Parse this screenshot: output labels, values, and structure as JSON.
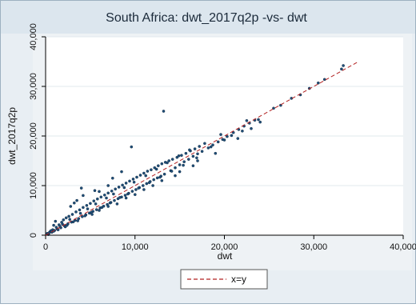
{
  "chart_data": {
    "type": "scatter",
    "title": "South Africa: dwt_2017q2p -vs- dwt",
    "xlabel": "dwt",
    "ylabel": "dwt_2017q2p",
    "xlim": [
      0,
      40000
    ],
    "ylim": [
      0,
      40000
    ],
    "x_ticks": [
      0,
      10000,
      20000,
      30000,
      40000
    ],
    "x_tick_labels": [
      "0",
      "10,000",
      "20,000",
      "30,000",
      "40,000"
    ],
    "y_ticks": [
      0,
      10000,
      20000,
      30000,
      40000
    ],
    "y_tick_labels": [
      "0",
      "10,000",
      "20,000",
      "30,000",
      "40,000"
    ],
    "grid": true,
    "legend_position": "bottom",
    "series": [
      {
        "name": "",
        "kind": "points",
        "color": "#1f4f7a",
        "points": [
          [
            1000,
            950
          ],
          [
            1300,
            1250
          ],
          [
            1700,
            1500
          ],
          [
            2100,
            1900
          ],
          [
            2500,
            2300
          ],
          [
            2900,
            2650
          ],
          [
            3300,
            3000
          ],
          [
            3700,
            3350
          ],
          [
            4100,
            3750
          ],
          [
            4500,
            4100
          ],
          [
            4900,
            4450
          ],
          [
            5300,
            4800
          ],
          [
            5700,
            5150
          ],
          [
            6100,
            5500
          ],
          [
            6500,
            5850
          ],
          [
            6900,
            6200
          ],
          [
            7300,
            6600
          ],
          [
            7700,
            7000
          ],
          [
            8100,
            7350
          ],
          [
            8500,
            7700
          ],
          [
            8900,
            8050
          ],
          [
            9300,
            8450
          ],
          [
            9700,
            8850
          ],
          [
            10100,
            9200
          ],
          [
            10500,
            9600
          ],
          [
            10900,
            10000
          ],
          [
            11300,
            10400
          ],
          [
            11700,
            10800
          ],
          [
            12100,
            11200
          ],
          [
            12500,
            11550
          ],
          [
            12900,
            11900
          ],
          [
            13300,
            12300
          ],
          [
            14000,
            13000
          ],
          [
            14500,
            13600
          ],
          [
            15000,
            14200
          ],
          [
            15500,
            14800
          ],
          [
            16000,
            15300
          ],
          [
            16500,
            15900
          ],
          [
            17000,
            16400
          ],
          [
            17500,
            16900
          ],
          [
            18200,
            17600
          ],
          [
            18700,
            18200
          ],
          [
            19300,
            18800
          ],
          [
            19800,
            19300
          ],
          [
            20300,
            19900
          ],
          [
            21000,
            20700
          ],
          [
            21600,
            21300
          ],
          [
            22200,
            22000
          ],
          [
            22800,
            22600
          ],
          [
            23400,
            23200
          ],
          [
            25500,
            25600
          ],
          [
            26300,
            26200
          ],
          [
            27500,
            27600
          ],
          [
            28500,
            28300
          ],
          [
            29500,
            29600
          ],
          [
            30500,
            30700
          ],
          [
            31200,
            31400
          ],
          [
            33100,
            33500
          ],
          [
            33300,
            34200
          ],
          [
            200,
            350
          ],
          [
            350,
            300
          ],
          [
            500,
            700
          ],
          [
            700,
            600
          ],
          [
            800,
            1100
          ],
          [
            1200,
            1600
          ],
          [
            1500,
            2100
          ],
          [
            1800,
            2600
          ],
          [
            2000,
            3100
          ],
          [
            2300,
            3500
          ],
          [
            2600,
            3800
          ],
          [
            3000,
            4200
          ],
          [
            3400,
            4700
          ],
          [
            3800,
            5100
          ],
          [
            4200,
            5600
          ],
          [
            4600,
            6000
          ],
          [
            5000,
            6400
          ],
          [
            5400,
            6900
          ],
          [
            5800,
            7300
          ],
          [
            6200,
            7700
          ],
          [
            6600,
            8100
          ],
          [
            7000,
            8500
          ],
          [
            7400,
            8900
          ],
          [
            7800,
            9300
          ],
          [
            8200,
            9700
          ],
          [
            8600,
            10100
          ],
          [
            9000,
            10500
          ],
          [
            9400,
            10900
          ],
          [
            9800,
            11300
          ],
          [
            10200,
            11700
          ],
          [
            10600,
            12100
          ],
          [
            11000,
            12500
          ],
          [
            11400,
            12900
          ],
          [
            11800,
            13200
          ],
          [
            12200,
            13600
          ],
          [
            12600,
            14000
          ],
          [
            13000,
            14400
          ],
          [
            13400,
            14700
          ],
          [
            13800,
            15000
          ],
          [
            14200,
            15300
          ],
          [
            14700,
            15700
          ],
          [
            15200,
            16100
          ],
          [
            15700,
            16500
          ],
          [
            16200,
            17000
          ],
          [
            16700,
            17400
          ],
          [
            17200,
            17900
          ],
          [
            3500,
            7000
          ],
          [
            4200,
            8000
          ],
          [
            5500,
            9000
          ],
          [
            7000,
            10000
          ],
          [
            4000,
            9500
          ],
          [
            9600,
            17800
          ],
          [
            13200,
            25000
          ],
          [
            8500,
            12800
          ],
          [
            6000,
            8800
          ],
          [
            7500,
            11500
          ],
          [
            2800,
            5800
          ],
          [
            3200,
            6500
          ],
          [
            1100,
            2800
          ],
          [
            900,
            2000
          ],
          [
            6000,
            5000
          ],
          [
            8000,
            6300
          ],
          [
            10000,
            8200
          ],
          [
            12000,
            10000
          ],
          [
            14500,
            12000
          ],
          [
            16500,
            14000
          ],
          [
            19000,
            16500
          ],
          [
            21500,
            19500
          ],
          [
            23000,
            21500
          ],
          [
            2200,
            1700
          ],
          [
            3600,
            2900
          ],
          [
            5200,
            4200
          ],
          [
            7000,
            5800
          ],
          [
            9000,
            7500
          ],
          [
            11000,
            9200
          ],
          [
            13000,
            11000
          ],
          [
            15000,
            12800
          ],
          [
            17000,
            15000
          ],
          [
            20000,
            19200
          ],
          [
            22000,
            21000
          ],
          [
            24000,
            22800
          ],
          [
            400,
            500
          ],
          [
            600,
            900
          ],
          [
            300,
            150
          ],
          [
            150,
            250
          ],
          [
            900,
            800
          ],
          [
            1400,
            1100
          ],
          [
            1600,
            1800
          ],
          [
            1900,
            2200
          ],
          [
            2400,
            2000
          ],
          [
            2700,
            3200
          ],
          [
            3100,
            2700
          ],
          [
            3900,
            4400
          ],
          [
            4400,
            3900
          ],
          [
            4700,
            5300
          ],
          [
            5100,
            4600
          ],
          [
            5600,
            6300
          ],
          [
            6300,
            5600
          ],
          [
            6800,
            7500
          ],
          [
            7200,
            6500
          ],
          [
            7600,
            8300
          ],
          [
            8300,
            7600
          ],
          [
            8800,
            9600
          ],
          [
            9200,
            8300
          ],
          [
            9900,
            10700
          ],
          [
            10400,
            9500
          ],
          [
            11200,
            12000
          ],
          [
            11600,
            10600
          ],
          [
            12400,
            13300
          ],
          [
            12800,
            11700
          ],
          [
            13600,
            14600
          ],
          [
            14100,
            12900
          ],
          [
            14900,
            16000
          ],
          [
            15400,
            14100
          ],
          [
            16100,
            17200
          ],
          [
            16900,
            15600
          ],
          [
            17800,
            18500
          ],
          [
            18500,
            17800
          ],
          [
            19600,
            20300
          ],
          [
            20800,
            20100
          ],
          [
            22500,
            23100
          ],
          [
            23800,
            23300
          ]
        ]
      },
      {
        "name": "x=y",
        "kind": "line",
        "color": "#b22222",
        "dash": true,
        "points": [
          [
            0,
            0
          ],
          [
            35000,
            35000
          ]
        ]
      }
    ]
  }
}
